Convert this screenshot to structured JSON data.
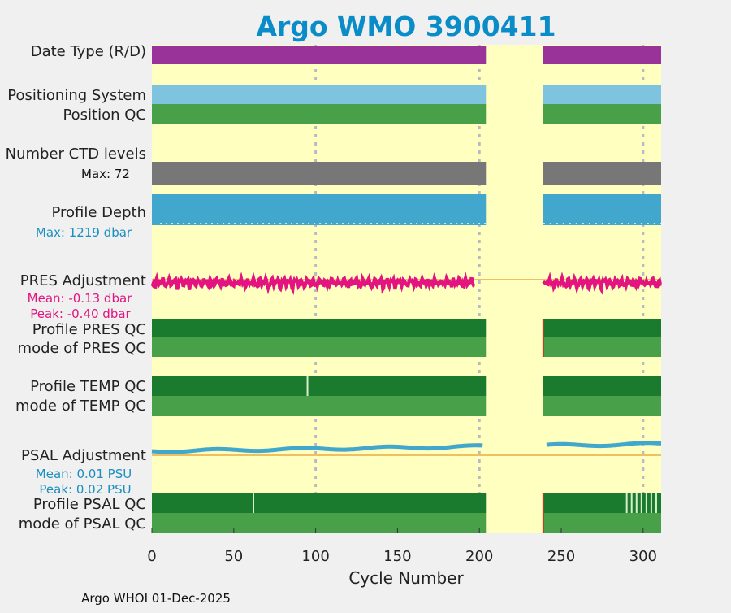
{
  "chart_data": {
    "type": "status-strip",
    "title": "Argo WMO 3900411",
    "xlabel": "Cycle Number",
    "xlim": [
      0,
      311
    ],
    "xticks": [
      0,
      50,
      100,
      150,
      200,
      250,
      300
    ],
    "tick_labels": [
      "0",
      "50",
      "100",
      "150",
      "200",
      "250",
      "300"
    ],
    "gridlines_x": [
      100,
      200,
      300
    ],
    "data_gap": [
      204,
      239
    ],
    "rows": {
      "date_type": {
        "label": "Date Type (R/D)",
        "color": "#993399",
        "value": "D"
      },
      "positioning": {
        "label": "Positioning System",
        "color": "#7ec4df"
      },
      "position_qc": {
        "label": "Position QC",
        "color": "#48a048"
      },
      "ctd_levels": {
        "label": "Number CTD levels",
        "max_label": "Max: 72",
        "color": "#777777"
      },
      "profile_depth": {
        "label": "Profile Depth",
        "max_label": "Max: 1219 dbar",
        "max_dbar": 1219,
        "color": "#41a7cd"
      },
      "pres_adjustment": {
        "label": "PRES Adjustment",
        "mean_label": "Mean: -0.13 dbar",
        "peak_label": "Peak: -0.40 dbar",
        "mean": -0.13,
        "peak": -0.4,
        "color": "#e3147f"
      },
      "profile_pres_qc": {
        "label": "Profile PRES QC",
        "color": "#1a7a2e"
      },
      "mode_pres_qc": {
        "label": "mode of PRES QC",
        "color": "#48a048"
      },
      "profile_temp_qc": {
        "label": "Profile TEMP QC",
        "color": "#1a7a2e",
        "flag_cycles": [
          95
        ]
      },
      "mode_temp_qc": {
        "label": "mode of TEMP QC",
        "color": "#48a048"
      },
      "psal_adjustment": {
        "label": "PSAL Adjustment",
        "mean_label": "Mean: 0.01 PSU",
        "peak_label": "Peak: 0.02 PSU",
        "mean": 0.01,
        "peak": 0.02,
        "color": "#41a7cd"
      },
      "profile_psal_qc": {
        "label": "Profile PSAL QC",
        "color": "#1a7a2e",
        "flag_cycles": [
          62,
          290,
          293,
          296,
          299,
          302,
          305,
          308
        ]
      },
      "mode_psal_qc": {
        "label": "mode of PSAL QC",
        "color": "#48a048"
      }
    },
    "reference_line_color": "#f0c060",
    "background_color": "#ffffc0"
  },
  "footer": "Argo WHOI 01-Dec-2025"
}
